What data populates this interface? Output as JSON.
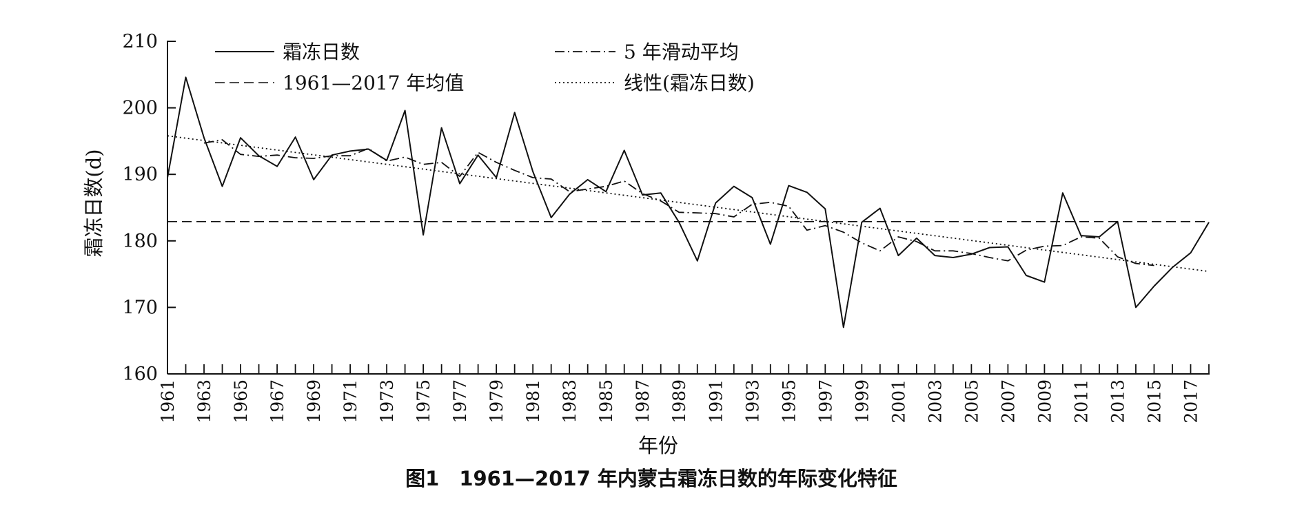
{
  "figure": {
    "caption": "图1　1961—2017 年内蒙古霜冻日数的年际变化特征"
  },
  "chart_data": {
    "type": "line",
    "xlabel": "年份",
    "ylabel": "霜冻日数(d)",
    "xlim": [
      1961,
      2018
    ],
    "ylim": [
      160,
      210
    ],
    "yticks": [
      160,
      170,
      180,
      190,
      200,
      210
    ],
    "xtick_labels": [
      "1961",
      "1963",
      "1965",
      "1967",
      "1969",
      "1971",
      "1973",
      "1975",
      "1977",
      "1979",
      "1981",
      "1983",
      "1985",
      "1987",
      "1989",
      "1991",
      "1993",
      "1995",
      "1997",
      "1999",
      "2001",
      "2003",
      "2005",
      "2007",
      "2009",
      "2011",
      "2013",
      "2015",
      "2017"
    ],
    "grid": false,
    "legend_position": "top",
    "x": [
      1961,
      1962,
      1963,
      1964,
      1965,
      1966,
      1967,
      1968,
      1969,
      1970,
      1971,
      1972,
      1973,
      1974,
      1975,
      1976,
      1977,
      1978,
      1979,
      1980,
      1981,
      1982,
      1983,
      1984,
      1985,
      1986,
      1987,
      1988,
      1989,
      1990,
      1991,
      1992,
      1993,
      1994,
      1995,
      1996,
      1997,
      1998,
      1999,
      2000,
      2001,
      2002,
      2003,
      2004,
      2005,
      2006,
      2007,
      2008,
      2009,
      2010,
      2011,
      2012,
      2013,
      2014,
      2015,
      2016,
      2017,
      2018
    ],
    "series": [
      {
        "name": "霜冻日数",
        "style": "solid",
        "values": [
          189.5,
          204.6,
          195.5,
          188.2,
          195.5,
          192.8,
          191.2,
          195.6,
          189.2,
          192.9,
          193.5,
          193.8,
          192.1,
          199.6,
          180.9,
          197.0,
          188.6,
          192.9,
          189.5,
          199.3,
          190.4,
          183.5,
          187.0,
          189.2,
          187.4,
          193.6,
          186.9,
          187.2,
          182.8,
          177.0,
          185.7,
          188.2,
          186.5,
          179.5,
          188.3,
          187.3,
          184.8,
          167.0,
          182.8,
          184.9,
          177.8,
          180.4,
          177.8,
          177.5,
          178.0,
          179.0,
          179.1,
          174.8,
          173.8,
          187.2,
          180.8,
          180.6,
          182.9,
          170.0,
          173.2,
          176.0,
          178.2,
          182.8
        ]
      },
      {
        "name": "5 年滑动平均",
        "style": "dashdot",
        "values": [
          null,
          null,
          194.7,
          195.2,
          193.0,
          192.7,
          192.9,
          192.5,
          192.4,
          192.8,
          192.8,
          193.9,
          192.0,
          192.6,
          191.5,
          191.8,
          189.7,
          193.3,
          191.8,
          190.6,
          189.5,
          189.3,
          187.4,
          187.8,
          188.2,
          189.0,
          187.1,
          186.0,
          184.3,
          184.2,
          184.1,
          183.6,
          185.5,
          185.8,
          185.2,
          181.6,
          182.3,
          181.3,
          179.7,
          178.5,
          180.6,
          179.9,
          178.5,
          178.5,
          178.1,
          177.5,
          177.0,
          178.6,
          179.2,
          179.3,
          180.6,
          180.4,
          177.6,
          176.6,
          176.3,
          null,
          null,
          null
        ]
      },
      {
        "name": "1961—2017 年均值",
        "style": "dashed",
        "value": 182.9
      },
      {
        "name": "线性(霜冻日数)",
        "style": "dotted",
        "start": [
          1961,
          195.8
        ],
        "end": [
          2018,
          175.4
        ]
      }
    ]
  }
}
